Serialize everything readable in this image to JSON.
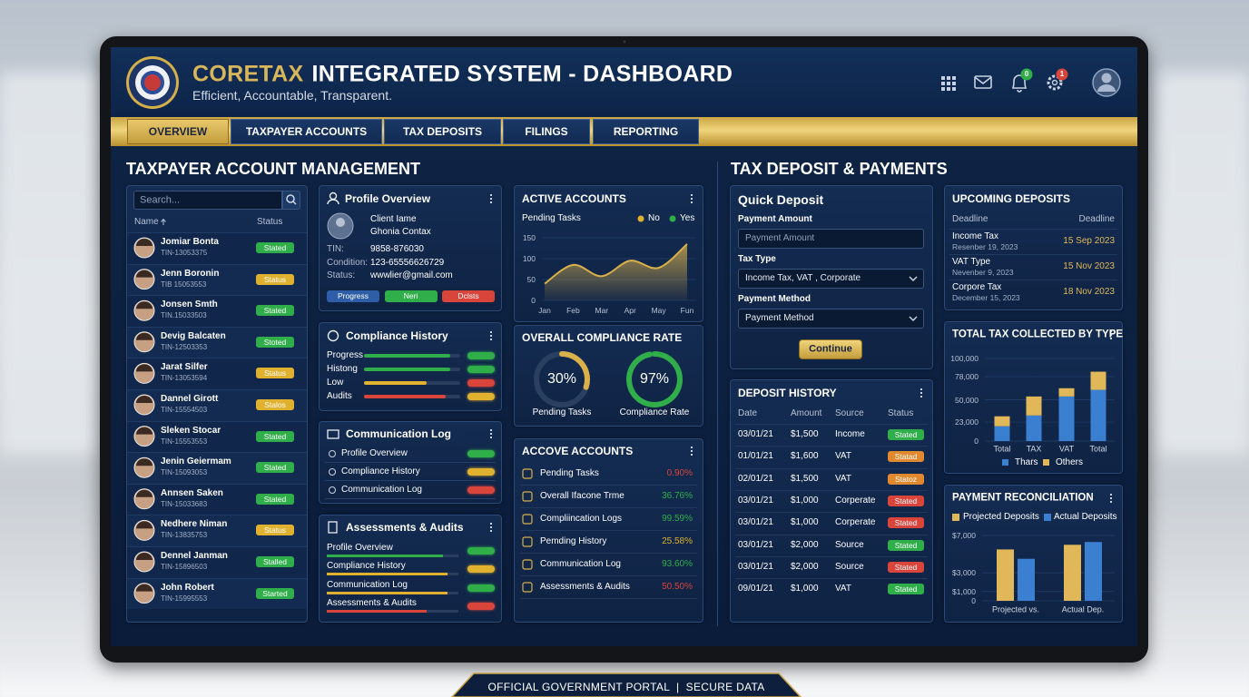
{
  "header": {
    "brand": "CORETAX",
    "title": "INTEGRATED SYSTEM - DASHBOARD",
    "tagline": "Efficient, Accountable, Transparent.",
    "badges": [
      {
        "label": "0",
        "color": "green"
      },
      {
        "label": "1",
        "color": "red"
      }
    ]
  },
  "nav": {
    "tabs": [
      "OVERVIEW",
      "TAXPAYER ACCOUNTS",
      "TAX DEPOSITS",
      "FILINGS",
      "REPORTING"
    ],
    "active": 0
  },
  "taxpayers": {
    "section_title": "TAXPAYER ACCOUNT MANAGEMENT",
    "search_placeholder": "Search...",
    "columns": [
      "Name",
      "Status"
    ],
    "rows": [
      {
        "name": "Jomiar Bonta",
        "tin": "TIN-13053375",
        "status": "Stated",
        "color": "green"
      },
      {
        "name": "Jenn Boronin",
        "tin": "TIB 15053553",
        "status": "Status",
        "color": "yellow"
      },
      {
        "name": "Jonsen Smth",
        "tin": "TIN.15033503",
        "status": "Stated",
        "color": "green"
      },
      {
        "name": "Devig Balcaten",
        "tin": "TIN-12503353",
        "status": "Stoted",
        "color": "green"
      },
      {
        "name": "Jarat Silfer",
        "tin": "TIN-13053594",
        "status": "Status",
        "color": "yellow"
      },
      {
        "name": "Dannel Girott",
        "tin": "TIN-15554503",
        "status": "Stalos",
        "color": "yellow"
      },
      {
        "name": "Sleken Stocar",
        "tin": "TIN-15553553",
        "status": "Stated",
        "color": "green"
      },
      {
        "name": "Jenin Geiermam",
        "tin": "TIN-15093053",
        "status": "Stated",
        "color": "green"
      },
      {
        "name": "Annsen Saken",
        "tin": "TIN-15033683",
        "status": "Stated",
        "color": "green"
      },
      {
        "name": "Nedhere Niman",
        "tin": "TIN-13835753",
        "status": "Status",
        "color": "yellow"
      },
      {
        "name": "Dennel Janman",
        "tin": "TIN-15896503",
        "status": "Stalled",
        "color": "green"
      },
      {
        "name": "John Robert",
        "tin": "TIN-15995553",
        "status": "Started",
        "color": "green"
      }
    ]
  },
  "profile": {
    "title": "Profile Overview",
    "client_label": "Client Iame",
    "client_name": "Ghonia Contax",
    "fields": [
      {
        "label": "TIN:",
        "value": "9858-876030"
      },
      {
        "label": "Condition:",
        "value": "123-65556626729"
      },
      {
        "label": "Status:",
        "value": "wwwlier@gmail.com"
      }
    ],
    "buttons": [
      {
        "label": "Progress",
        "color": "blue"
      },
      {
        "label": "Neri",
        "color": "green"
      },
      {
        "label": "Dclsts",
        "color": "red"
      }
    ]
  },
  "compliance_history": {
    "title": "Compliance History",
    "rows": [
      {
        "label": "Progress",
        "progress": 90,
        "color": "green",
        "flag": "green"
      },
      {
        "label": "Histong",
        "progress": 90,
        "color": "green",
        "flag": "green"
      },
      {
        "label": "Low",
        "progress": 65,
        "color": "yellow",
        "flag": "red"
      },
      {
        "label": "Audits",
        "progress": 85,
        "color": "red",
        "flag": "yellow"
      }
    ]
  },
  "communication_log": {
    "title": "Communication Log",
    "items": [
      {
        "label": "Profile Overview",
        "flag": "green"
      },
      {
        "label": "Compliance History",
        "flag": "yellow"
      },
      {
        "label": "Communication Log",
        "flag": "red"
      }
    ]
  },
  "assessments": {
    "title": "Assessments & Audits",
    "rows": [
      {
        "label": "Profile Overview",
        "progress": 88,
        "color": "green",
        "flag": "green"
      },
      {
        "label": "Compliance History",
        "progress": 92,
        "color": "yellow",
        "flag": "yellow"
      },
      {
        "label": "Communication Log",
        "progress": 92,
        "color": "yellow",
        "flag": "green"
      },
      {
        "label": "Assessments & Audits",
        "progress": 76,
        "color": "red",
        "flag": "red"
      }
    ]
  },
  "active_accounts": {
    "type": "area",
    "title": "ACTIVE ACCOUNTS",
    "subtitle": "Pending Tasks",
    "color": "#d9b04a",
    "legend": [
      {
        "name": "No",
        "color": "#e0b12e"
      },
      {
        "name": "Yes",
        "color": "#2fae4a"
      }
    ],
    "categories": [
      "Jan",
      "Feb",
      "Mar",
      "Apr",
      "May",
      "Fun"
    ],
    "values": [
      40,
      85,
      58,
      95,
      78,
      135
    ],
    "ylim": [
      0,
      150
    ],
    "yticks": [
      0,
      50,
      100,
      150
    ]
  },
  "compliance_rate": {
    "type": "donut",
    "title": "OVERALL COMPLIANCE RATE",
    "gauges": [
      {
        "label": "Pending Tasks",
        "value": 30,
        "value_label": "30%",
        "color": "#d9b04a"
      },
      {
        "label": "Compliance Rate",
        "value": 97,
        "value_label": "97%",
        "color": "#2fae4a"
      }
    ]
  },
  "accove_accounts": {
    "title": "ACCOVE ACCOUNTS",
    "rows": [
      {
        "label": "Pending Tasks",
        "value": "0.90%",
        "color": "red"
      },
      {
        "label": "Overall Ifacone Trme",
        "value": "36.76%",
        "color": "green"
      },
      {
        "label": "Compliincation Logs",
        "value": "99.59%",
        "color": "green"
      },
      {
        "label": "Pemding History",
        "value": "25.58%",
        "color": "yellow"
      },
      {
        "label": "Communication Log",
        "value": "93.60%",
        "color": "green"
      },
      {
        "label": "Assessments & Audits",
        "value": "50.50%",
        "color": "red"
      }
    ]
  },
  "deposits": {
    "section_title": "TAX DEPOSIT & PAYMENTS",
    "quick_deposit": {
      "title": "Quick Deposit",
      "fields": [
        {
          "label": "Payment Amount",
          "input": "Payment Amount",
          "dropdown": false
        },
        {
          "label": "Tax Type",
          "input": "Income Tax, VAT , Corporate",
          "dropdown": true
        },
        {
          "label": "Payment Method",
          "input": "Payment Method",
          "dropdown": true
        }
      ],
      "button": "Continue"
    },
    "history": {
      "title": "DEPOSIT HISTORY",
      "columns": [
        "Date",
        "Amount",
        "Source",
        "Status"
      ],
      "rows": [
        {
          "date": "03/01/21",
          "amount": "$1,500",
          "source": "Income",
          "status": "Stated",
          "color": "green"
        },
        {
          "date": "01/01/21",
          "amount": "$1,600",
          "source": "VAT",
          "status": "Statad",
          "color": "orange"
        },
        {
          "date": "02/01/21",
          "amount": "$1,500",
          "source": "VAT",
          "status": "Statoz",
          "color": "orange"
        },
        {
          "date": "03/01/21",
          "amount": "$1,000",
          "source": "Corperate",
          "status": "Stated",
          "color": "red"
        },
        {
          "date": "03/01/21",
          "amount": "$1,000",
          "source": "Corperate",
          "status": "Stated",
          "color": "red"
        },
        {
          "date": "03/01/21",
          "amount": "$2,000",
          "source": "Source",
          "status": "Stated",
          "color": "green"
        },
        {
          "date": "03/01/21",
          "amount": "$2,000",
          "source": "Source",
          "status": "Stated",
          "color": "red"
        },
        {
          "date": "09/01/21",
          "amount": "$1,000",
          "source": "VAT",
          "status": "Stated",
          "color": "green"
        }
      ]
    },
    "upcoming": {
      "title": "UPCOMING DEPOSITS",
      "columns": [
        "Deadline",
        "Deadline"
      ],
      "rows": [
        {
          "name": "Income Tax",
          "date": "Resenber 19, 2023",
          "deadline": "15 Sep 2023"
        },
        {
          "name": "VAT Type",
          "date": "Nevenber 9, 2023",
          "deadline": "15 Nov 2023"
        },
        {
          "name": "Corpore Tax",
          "date": "December 15, 2023",
          "deadline": "18 Nov 2023"
        }
      ]
    },
    "total_tax": {
      "type": "bar",
      "stacked": true,
      "title": "TOTAL TAX COLLECTED BY TYPE",
      "categories": [
        "Total",
        "TAX",
        "VAT",
        "Total"
      ],
      "series": [
        {
          "name": "Thars",
          "color": "#3a7fd0",
          "values": [
            18000,
            31000,
            54000,
            62000
          ]
        },
        {
          "name": "Others",
          "color": "#e0b85a",
          "values": [
            12000,
            23000,
            10000,
            22000
          ]
        }
      ],
      "ylim": [
        0,
        100000
      ],
      "yticks": [
        0,
        {
          "value": 23000,
          "label": "23,000"
        },
        {
          "value": 50000,
          "label": "50,000"
        },
        {
          "value": 78000,
          "label": "78,000"
        },
        {
          "value": 100000,
          "label": "100,000"
        }
      ]
    },
    "reconciliation": {
      "type": "bar",
      "title": "PAYMENT RECONCILIATION",
      "categories": [
        "Projected vs.",
        "Actual Dep."
      ],
      "series": [
        {
          "name": "Projected Deposits",
          "color": "#e0b85a",
          "values": [
            5500,
            6000
          ]
        },
        {
          "name": "Actual Deposits",
          "color": "#3a7fd0",
          "values": [
            4500,
            6300
          ]
        }
      ],
      "ylim": [
        0,
        7000
      ],
      "yticks": [
        0,
        {
          "value": 1000,
          "label": "$1,000"
        },
        {
          "value": 3000,
          "label": "$3,000"
        },
        {
          "value": 7000,
          "label": "$7,000"
        }
      ]
    }
  },
  "footer": {
    "text": "OFFICIAL GOVERNMENT PORTAL  |  SECURE DATA"
  }
}
